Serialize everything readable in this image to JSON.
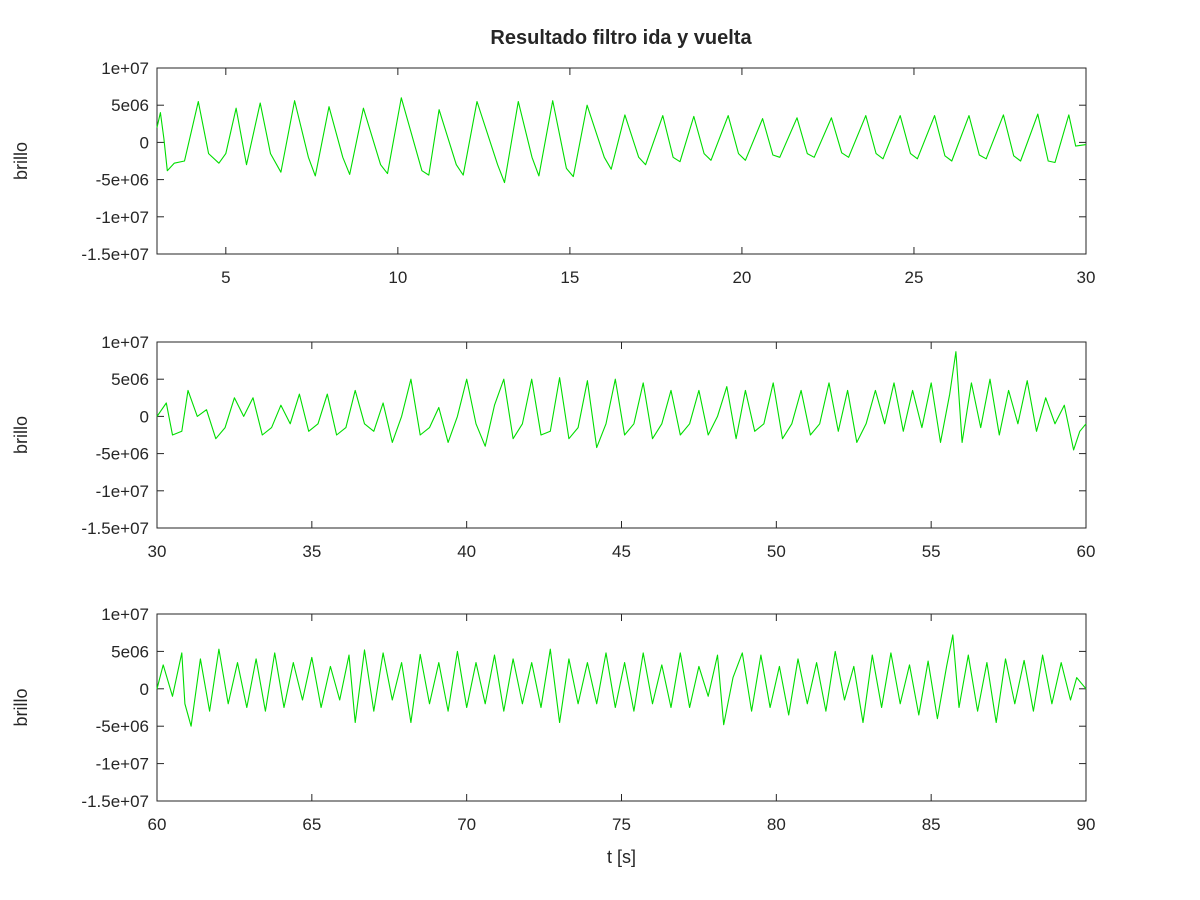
{
  "chart_data": {
    "title": "Resultado filtro ida y vuelta",
    "type": "line",
    "line_color": "#00dd00",
    "grid": false,
    "panels": [
      {
        "type": "line",
        "ylabel": "brillo",
        "xlabel": "",
        "xlim": [
          3,
          30
        ],
        "ylim": [
          -15000000,
          10000000
        ],
        "xticks": [
          5,
          10,
          15,
          20,
          25,
          30
        ],
        "xtick_labels": [
          "5",
          "10",
          "15",
          "20",
          "25",
          "30"
        ],
        "yticks": [
          10000000,
          5000000,
          0,
          -5000000,
          -10000000,
          -15000000
        ],
        "ytick_labels": [
          "1e+07",
          "5e06",
          "0",
          "-5e+06",
          "-1e+07",
          "-1.5e+07"
        ],
        "series": [
          {
            "x": [
              3.0,
              3.1,
              3.2,
              3.3,
              3.5,
              3.8,
              4.2,
              4.5,
              4.8,
              5.0,
              5.3,
              5.6,
              6.0,
              6.3,
              6.6,
              7.0,
              7.4,
              7.6,
              8.0,
              8.4,
              8.6,
              9.0,
              9.5,
              9.7,
              10.1,
              10.7,
              10.9,
              11.2,
              11.7,
              11.9,
              12.3,
              12.9,
              13.1,
              13.5,
              13.9,
              14.1,
              14.5,
              14.9,
              15.1,
              15.5,
              16.0,
              16.2,
              16.6,
              17.0,
              17.2,
              17.7,
              18.0,
              18.2,
              18.6,
              18.9,
              19.1,
              19.6,
              19.9,
              20.1,
              20.6,
              20.9,
              21.1,
              21.6,
              21.9,
              22.1,
              22.6,
              22.9,
              23.1,
              23.6,
              23.9,
              24.1,
              24.6,
              24.9,
              25.1,
              25.6,
              25.9,
              26.1,
              26.6,
              26.9,
              27.1,
              27.6,
              27.9,
              28.1,
              28.6,
              28.9,
              29.1,
              29.5,
              29.7,
              30.0
            ],
            "y": [
              2000000,
              4000000,
              500000,
              -3800000,
              -2800000,
              -2500000,
              5500000,
              -1500000,
              -2800000,
              -1500000,
              4600000,
              -3000000,
              5300000,
              -1500000,
              -4000000,
              5600000,
              -2000000,
              -4500000,
              4800000,
              -2000000,
              -4300000,
              4600000,
              -3000000,
              -4200000,
              6000000,
              -3800000,
              -4400000,
              4400000,
              -3000000,
              -4400000,
              5500000,
              -3000000,
              -5400000,
              5500000,
              -2000000,
              -4500000,
              5600000,
              -3500000,
              -4600000,
              5000000,
              -2000000,
              -3600000,
              3700000,
              -2000000,
              -3000000,
              3600000,
              -2000000,
              -2600000,
              3500000,
              -1500000,
              -2400000,
              3600000,
              -1500000,
              -2400000,
              3200000,
              -1700000,
              -2000000,
              3300000,
              -1500000,
              -2000000,
              3300000,
              -1400000,
              -2000000,
              3600000,
              -1500000,
              -2200000,
              3600000,
              -1500000,
              -2200000,
              3600000,
              -1800000,
              -2500000,
              3600000,
              -1700000,
              -2200000,
              3700000,
              -1800000,
              -2500000,
              3800000,
              -2500000,
              -2700000,
              3700000,
              -500000,
              -300000
            ]
          }
        ]
      },
      {
        "type": "line",
        "ylabel": "brillo",
        "xlabel": "",
        "xlim": [
          30,
          60
        ],
        "ylim": [
          -15000000,
          10000000
        ],
        "xticks": [
          30,
          35,
          40,
          45,
          50,
          55,
          60
        ],
        "xtick_labels": [
          "30",
          "35",
          "40",
          "45",
          "50",
          "55",
          "60"
        ],
        "yticks": [
          10000000,
          5000000,
          0,
          -5000000,
          -10000000,
          -15000000
        ],
        "ytick_labels": [
          "1e+07",
          "5e06",
          "0",
          "-5e+06",
          "-1e+07",
          "-1.5e+07"
        ],
        "series": [
          {
            "x": [
              30.0,
              30.3,
              30.5,
              30.8,
              31.0,
              31.3,
              31.6,
              31.9,
              32.2,
              32.5,
              32.8,
              33.1,
              33.4,
              33.7,
              34.0,
              34.3,
              34.6,
              34.9,
              35.2,
              35.5,
              35.8,
              36.1,
              36.4,
              36.7,
              37.0,
              37.3,
              37.6,
              37.9,
              38.2,
              38.5,
              38.8,
              39.1,
              39.4,
              39.7,
              40.0,
              40.3,
              40.6,
              40.9,
              41.2,
              41.5,
              41.8,
              42.1,
              42.4,
              42.7,
              43.0,
              43.3,
              43.6,
              43.9,
              44.2,
              44.5,
              44.8,
              45.1,
              45.4,
              45.7,
              46.0,
              46.3,
              46.6,
              46.9,
              47.2,
              47.5,
              47.8,
              48.1,
              48.4,
              48.7,
              49.0,
              49.3,
              49.6,
              49.9,
              50.2,
              50.5,
              50.8,
              51.1,
              51.4,
              51.7,
              52.0,
              52.3,
              52.6,
              52.9,
              53.2,
              53.5,
              53.8,
              54.1,
              54.4,
              54.7,
              55.0,
              55.3,
              55.6,
              55.8,
              56.0,
              56.3,
              56.6,
              56.9,
              57.2,
              57.5,
              57.8,
              58.1,
              58.4,
              58.7,
              59.0,
              59.3,
              59.6,
              59.8,
              60.0
            ],
            "y": [
              0,
              1800000,
              -2500000,
              -2000000,
              3500000,
              0,
              900000,
              -3000000,
              -1500000,
              2500000,
              0,
              2500000,
              -2500000,
              -1500000,
              1500000,
              -1000000,
              3000000,
              -2000000,
              -1000000,
              3000000,
              -2500000,
              -1500000,
              3500000,
              -1000000,
              -2000000,
              1800000,
              -3500000,
              0,
              5000000,
              -2500000,
              -1500000,
              1200000,
              -3500000,
              0,
              5000000,
              -1000000,
              -4000000,
              1500000,
              5000000,
              -3000000,
              -1000000,
              5000000,
              -2500000,
              -2000000,
              5200000,
              -3000000,
              -1500000,
              4800000,
              -4200000,
              -1000000,
              5000000,
              -2500000,
              -1000000,
              4500000,
              -3000000,
              -1000000,
              3500000,
              -2500000,
              -1000000,
              3500000,
              -2500000,
              0,
              4000000,
              -3000000,
              3500000,
              -2000000,
              -1000000,
              4500000,
              -3000000,
              -1000000,
              3500000,
              -2500000,
              -1000000,
              4500000,
              -2000000,
              3500000,
              -3500000,
              -1000000,
              3500000,
              -1000000,
              4500000,
              -2000000,
              3500000,
              -1500000,
              4500000,
              -3500000,
              3000000,
              8700000,
              -3500000,
              4500000,
              -1500000,
              5000000,
              -2500000,
              3500000,
              -1000000,
              4800000,
              -2000000,
              2500000,
              -1000000,
              1500000,
              -4500000,
              -2000000,
              -1000000
            ]
          }
        ]
      },
      {
        "type": "line",
        "ylabel": "brillo",
        "xlabel": "t [s]",
        "xlim": [
          60,
          90
        ],
        "ylim": [
          -15000000,
          10000000
        ],
        "xticks": [
          60,
          65,
          70,
          75,
          80,
          85,
          90
        ],
        "xtick_labels": [
          "60",
          "65",
          "70",
          "75",
          "80",
          "85",
          "90"
        ],
        "yticks": [
          10000000,
          5000000,
          0,
          -5000000,
          -10000000,
          -15000000
        ],
        "ytick_labels": [
          "1e+07",
          "5e06",
          "0",
          "-5e+06",
          "-1e+07",
          "-1.5e+07"
        ],
        "series": [
          {
            "x": [
              60.0,
              60.2,
              60.5,
              60.8,
              60.9,
              61.1,
              61.4,
              61.7,
              62.0,
              62.3,
              62.6,
              62.9,
              63.2,
              63.5,
              63.8,
              64.1,
              64.4,
              64.7,
              65.0,
              65.3,
              65.6,
              65.9,
              66.2,
              66.4,
              66.7,
              67.0,
              67.3,
              67.6,
              67.9,
              68.2,
              68.5,
              68.8,
              69.1,
              69.4,
              69.7,
              70.0,
              70.3,
              70.6,
              70.9,
              71.2,
              71.5,
              71.8,
              72.1,
              72.4,
              72.7,
              73.0,
              73.3,
              73.6,
              73.9,
              74.2,
              74.5,
              74.8,
              75.1,
              75.4,
              75.7,
              76.0,
              76.3,
              76.6,
              76.9,
              77.2,
              77.5,
              77.8,
              78.1,
              78.3,
              78.6,
              78.9,
              79.2,
              79.5,
              79.8,
              80.1,
              80.4,
              80.7,
              81.0,
              81.3,
              81.6,
              81.9,
              82.2,
              82.5,
              82.8,
              83.1,
              83.4,
              83.7,
              84.0,
              84.3,
              84.6,
              84.9,
              85.2,
              85.5,
              85.7,
              85.9,
              86.2,
              86.5,
              86.8,
              87.1,
              87.4,
              87.7,
              88.0,
              88.3,
              88.6,
              88.9,
              89.2,
              89.5,
              89.7,
              90.0
            ],
            "y": [
              0,
              3200000,
              -1000000,
              4800000,
              -2000000,
              -5000000,
              4000000,
              -3000000,
              5300000,
              -2000000,
              3500000,
              -2500000,
              4000000,
              -3000000,
              4800000,
              -2500000,
              3500000,
              -1500000,
              4200000,
              -2500000,
              3000000,
              -1500000,
              4500000,
              -4500000,
              5200000,
              -3000000,
              4800000,
              -1500000,
              3500000,
              -4500000,
              4600000,
              -2000000,
              3500000,
              -3000000,
              5000000,
              -2500000,
              3500000,
              -2000000,
              4500000,
              -3000000,
              4000000,
              -2000000,
              3500000,
              -2500000,
              5300000,
              -4500000,
              4000000,
              -2000000,
              3500000,
              -2000000,
              4800000,
              -2500000,
              3500000,
              -3000000,
              4800000,
              -2000000,
              3200000,
              -2500000,
              4800000,
              -2500000,
              3000000,
              -1000000,
              4500000,
              -4800000,
              1500000,
              4800000,
              -3000000,
              4500000,
              -2500000,
              3000000,
              -3500000,
              4000000,
              -2000000,
              3500000,
              -3000000,
              5000000,
              -1500000,
              3000000,
              -4500000,
              4500000,
              -2500000,
              4800000,
              -2000000,
              3200000,
              -3500000,
              3700000,
              -4000000,
              3000000,
              7200000,
              -2500000,
              4500000,
              -3000000,
              3500000,
              -4500000,
              4000000,
              -2000000,
              3800000,
              -3000000,
              4500000,
              -2000000,
              3500000,
              -1500000,
              1500000,
              0
            ]
          }
        ]
      }
    ]
  }
}
